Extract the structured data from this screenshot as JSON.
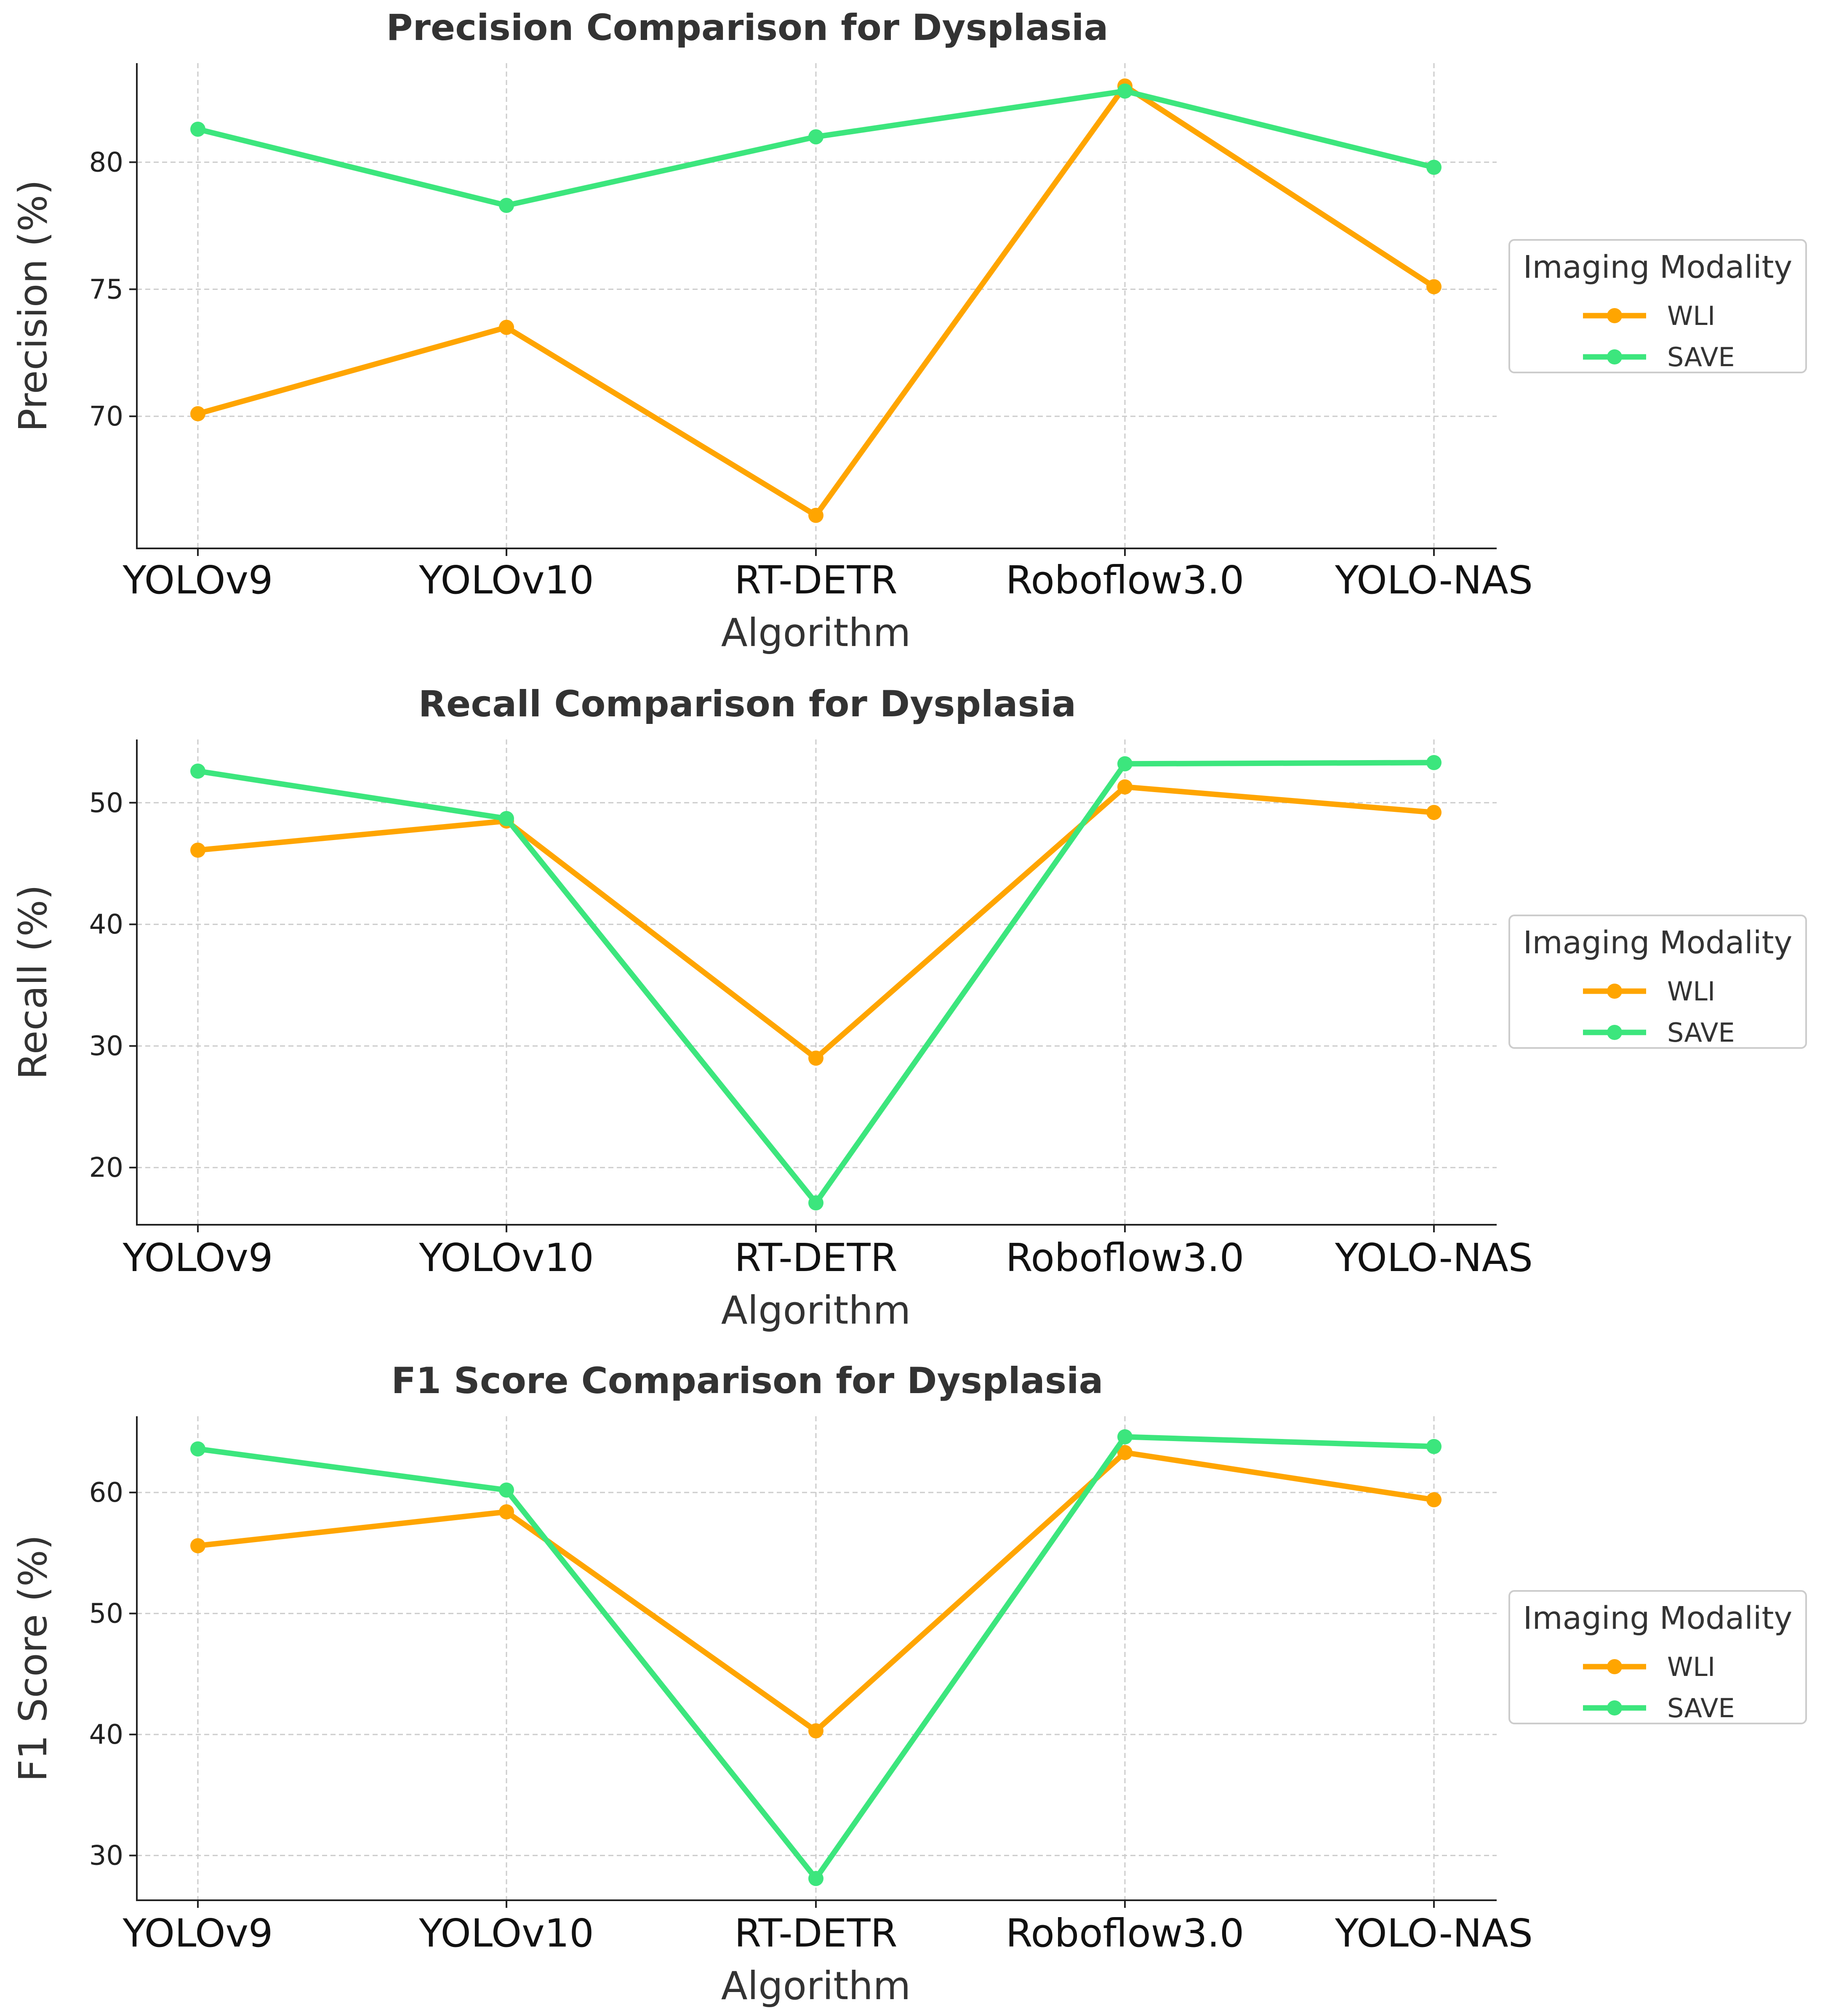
{
  "chart_data": [
    {
      "type": "line",
      "title": "Precision Comparison for Dysplasia",
      "xlabel": "Algorithm",
      "ylabel": "Precision (%)",
      "categories": [
        "YOLOv9",
        "YOLOv10",
        "RT-DETR",
        "Roboflow3.0",
        "YOLO-NAS"
      ],
      "ylim": [
        64.8,
        83.9
      ],
      "yticks": [
        70,
        75,
        80
      ],
      "grid": true,
      "legend": {
        "title": "Imaging Modality",
        "position": "center-right"
      },
      "series": [
        {
          "name": "WLI",
          "color": "#ffa500",
          "values": [
            70.1,
            73.5,
            66.1,
            83.0,
            75.1
          ]
        },
        {
          "name": "SAVE",
          "color": "#3ce67d",
          "values": [
            81.3,
            78.3,
            81.0,
            82.8,
            79.8
          ]
        }
      ]
    },
    {
      "type": "line",
      "title": "Recall Comparison for Dysplasia",
      "xlabel": "Algorithm",
      "ylabel": "Recall (%)",
      "categories": [
        "YOLOv9",
        "YOLOv10",
        "RT-DETR",
        "Roboflow3.0",
        "YOLO-NAS"
      ],
      "ylim": [
        15.3,
        55.2
      ],
      "yticks": [
        20,
        30,
        40,
        50
      ],
      "grid": true,
      "legend": {
        "title": "Imaging Modality",
        "position": "center-right"
      },
      "series": [
        {
          "name": "WLI",
          "color": "#ffa500",
          "values": [
            46.1,
            48.5,
            29.0,
            51.3,
            49.2
          ]
        },
        {
          "name": "SAVE",
          "color": "#3ce67d",
          "values": [
            52.6,
            48.7,
            17.1,
            53.2,
            53.3
          ]
        }
      ]
    },
    {
      "type": "line",
      "title": "F1 Score Comparison for Dysplasia",
      "xlabel": "Algorithm",
      "ylabel": "F1 Score (%)",
      "categories": [
        "YOLOv9",
        "YOLOv10",
        "RT-DETR",
        "Roboflow3.0",
        "YOLO-NAS"
      ],
      "ylim": [
        26.3,
        66.3
      ],
      "yticks": [
        30,
        40,
        50,
        60
      ],
      "grid": true,
      "legend": {
        "title": "Imaging Modality",
        "position": "center-right"
      },
      "series": [
        {
          "name": "WLI",
          "color": "#ffa500",
          "values": [
            55.6,
            58.4,
            40.3,
            63.3,
            59.4
          ]
        },
        {
          "name": "SAVE",
          "color": "#3ce67d",
          "values": [
            63.6,
            60.2,
            28.1,
            64.6,
            63.8
          ]
        }
      ]
    }
  ]
}
